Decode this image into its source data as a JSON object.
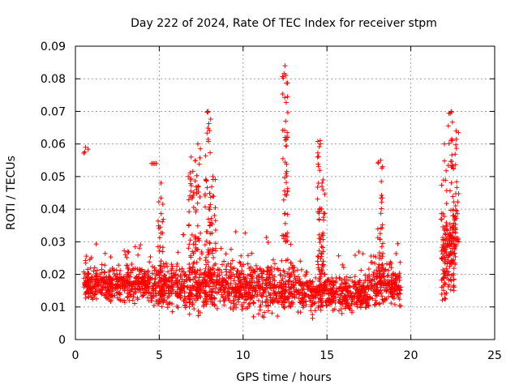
{
  "chart_data": {
    "type": "scatter",
    "title": "Day 222 of 2024, Rate Of TEC Index for receiver stpm",
    "xlabel": "GPS time / hours",
    "ylabel": "ROTI / TECUs",
    "xlim": [
      0,
      25
    ],
    "ylim": [
      0,
      0.09
    ],
    "x_ticks": [
      "0",
      "5",
      "10",
      "15",
      "20",
      "25"
    ],
    "y_ticks": [
      "0",
      "0.01",
      "0.02",
      "0.03",
      "0.04",
      "0.05",
      "0.06",
      "0.07",
      "0.08",
      "0.09"
    ],
    "grid": true,
    "marker": "plus",
    "color": "#ff0000",
    "segments": [
      {
        "start": 0.5,
        "end": 4.5,
        "mean": 0.017,
        "spread": 0.005
      },
      {
        "start": 4.5,
        "end": 9.0,
        "mean": 0.016,
        "spread": 0.006
      },
      {
        "start": 9.0,
        "end": 13.5,
        "mean": 0.016,
        "spread": 0.007
      },
      {
        "start": 13.5,
        "end": 17.5,
        "mean": 0.014,
        "spread": 0.005
      },
      {
        "start": 17.5,
        "end": 19.4,
        "mean": 0.017,
        "spread": 0.006
      },
      {
        "start": 21.8,
        "end": 22.7,
        "mean": 0.028,
        "spread": 0.01
      }
    ],
    "bursts": [
      {
        "x": 0.6,
        "min": 0.057,
        "max": 0.059
      },
      {
        "x": 4.7,
        "min": 0.054,
        "max": 0.054
      },
      {
        "x": 5.1,
        "min": 0.02,
        "max": 0.048
      },
      {
        "x": 6.9,
        "min": 0.02,
        "max": 0.056
      },
      {
        "x": 7.3,
        "min": 0.02,
        "max": 0.06
      },
      {
        "x": 7.9,
        "min": 0.02,
        "max": 0.07
      },
      {
        "x": 8.2,
        "min": 0.02,
        "max": 0.05
      },
      {
        "x": 12.5,
        "min": 0.03,
        "max": 0.084
      },
      {
        "x": 12.5,
        "min": 0.061,
        "max": 0.062
      },
      {
        "x": 14.6,
        "min": 0.02,
        "max": 0.061
      },
      {
        "x": 14.7,
        "min": 0.02,
        "max": 0.047
      },
      {
        "x": 18.2,
        "min": 0.02,
        "max": 0.055
      },
      {
        "x": 22.0,
        "min": 0.012,
        "max": 0.06
      },
      {
        "x": 22.4,
        "min": 0.015,
        "max": 0.07
      },
      {
        "x": 22.7,
        "min": 0.03,
        "max": 0.064
      }
    ]
  }
}
